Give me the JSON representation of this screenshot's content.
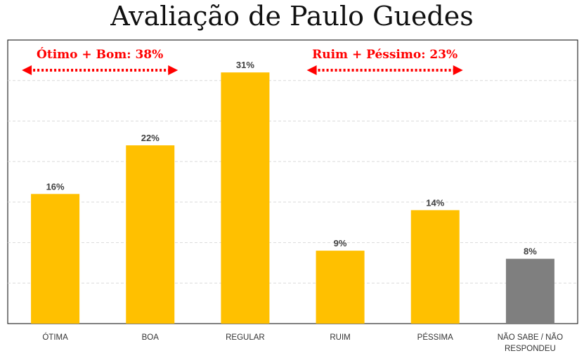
{
  "title": "Avaliação de Paulo Guedes",
  "chart_data": {
    "type": "bar",
    "title": "Avaliação de Paulo Guedes",
    "categories": [
      "ÓTIMA",
      "BOA",
      "REGULAR",
      "RUIM",
      "PÉSSIMA",
      "NÃO SABE / NÃO RESPONDEU"
    ],
    "category_lines": [
      [
        "ÓTIMA"
      ],
      [
        "BOA"
      ],
      [
        "REGULAR"
      ],
      [
        "RUIM"
      ],
      [
        "PÉSSIMA"
      ],
      [
        "NÃO SABE / NÃO",
        "RESPONDEU"
      ]
    ],
    "values": [
      16,
      22,
      31,
      9,
      14,
      8
    ],
    "value_labels": [
      "16%",
      "22%",
      "31%",
      "9%",
      "14%",
      "8%"
    ],
    "bar_colors": [
      "#FFC000",
      "#FFC000",
      "#FFC000",
      "#FFC000",
      "#FFC000",
      "#7F7F7F"
    ],
    "ylim": [
      0,
      35
    ],
    "grid": true,
    "annotations": [
      {
        "text": "Ótimo + Bom: 38%",
        "color": "#FF0000",
        "spans": [
          "ÓTIMA",
          "BOA"
        ]
      },
      {
        "text": "Ruim + Péssimo: 23%",
        "color": "#FF0000",
        "spans": [
          "RUIM",
          "PÉSSIMA"
        ]
      }
    ]
  }
}
